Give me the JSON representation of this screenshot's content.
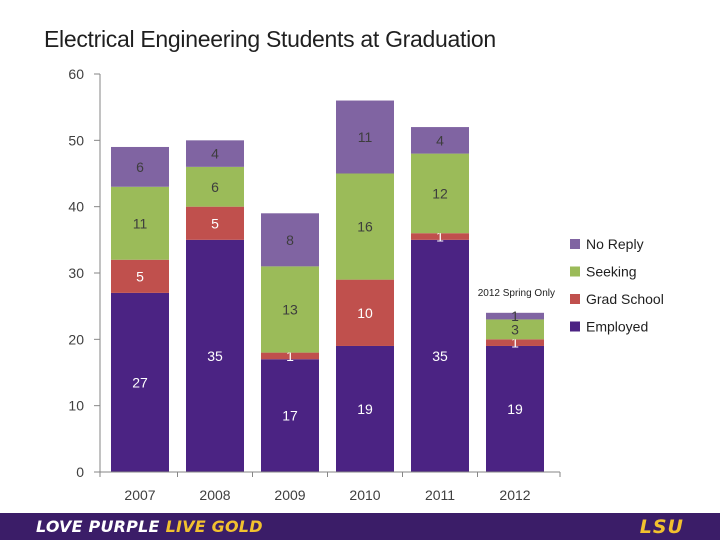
{
  "title": "Electrical Engineering Students at Graduation",
  "chart_data": {
    "type": "stacked-bar",
    "title": "Electrical Engineering Students at Graduation",
    "categories": [
      "2007",
      "2008",
      "2009",
      "2010",
      "2011",
      "2012"
    ],
    "ylim": [
      0,
      60
    ],
    "yticks": [
      0,
      10,
      20,
      30,
      40,
      50,
      60
    ],
    "grid": false,
    "legend_position": "right",
    "series": [
      {
        "name": "Employed",
        "color": "#4b2383",
        "values": [
          27,
          35,
          17,
          19,
          35,
          19
        ],
        "labels": [
          "27",
          "35",
          "17",
          "19",
          "35",
          "19"
        ]
      },
      {
        "name": "Grad School",
        "color": "#c0504d",
        "values": [
          5,
          5,
          1,
          10,
          1,
          1
        ],
        "labels": [
          "5",
          "5",
          "1",
          "10",
          "1",
          "1"
        ]
      },
      {
        "name": "Seeking",
        "color": "#9bbb59",
        "values": [
          11,
          6,
          13,
          16,
          12,
          3
        ],
        "labels": [
          "11",
          "6",
          "13",
          "16",
          "12",
          "3"
        ]
      },
      {
        "name": "No Reply",
        "color": "#8064a2",
        "values": [
          6,
          4,
          8,
          11,
          4,
          1
        ],
        "labels": [
          "6",
          "4",
          "8",
          "11",
          "4",
          "1"
        ]
      }
    ],
    "annotation": "2012 Spring Only"
  },
  "footer": {
    "slogan_part1": "LOVE PURPLE",
    "slogan_part2": "LIVE GOLD",
    "logo_text": "LSU"
  }
}
